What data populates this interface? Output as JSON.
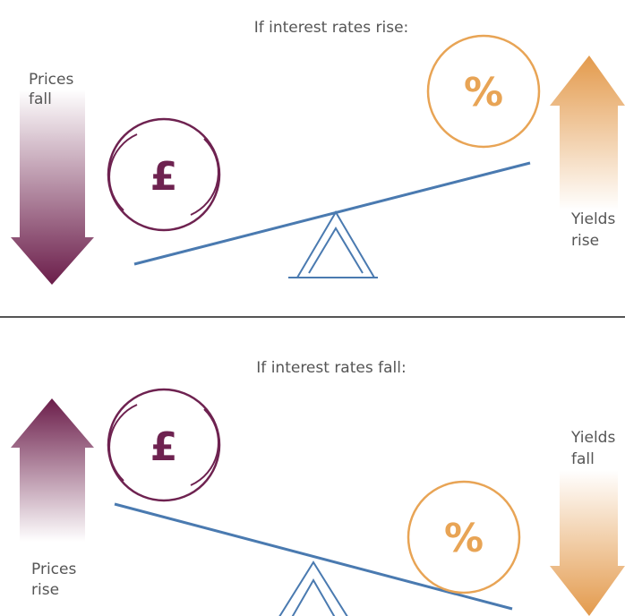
{
  "panels": [
    {
      "title": "If interest rates rise:",
      "left_label": [
        "Prices",
        "fall"
      ],
      "right_label": [
        "Yields",
        "rise"
      ],
      "left_symbol": "£",
      "right_symbol": "%"
    },
    {
      "title": "If interest rates fall:",
      "left_label": [
        "Prices",
        "rise"
      ],
      "right_label": [
        "Yields",
        "fall"
      ],
      "left_symbol": "£",
      "right_symbol": "%"
    }
  ]
}
